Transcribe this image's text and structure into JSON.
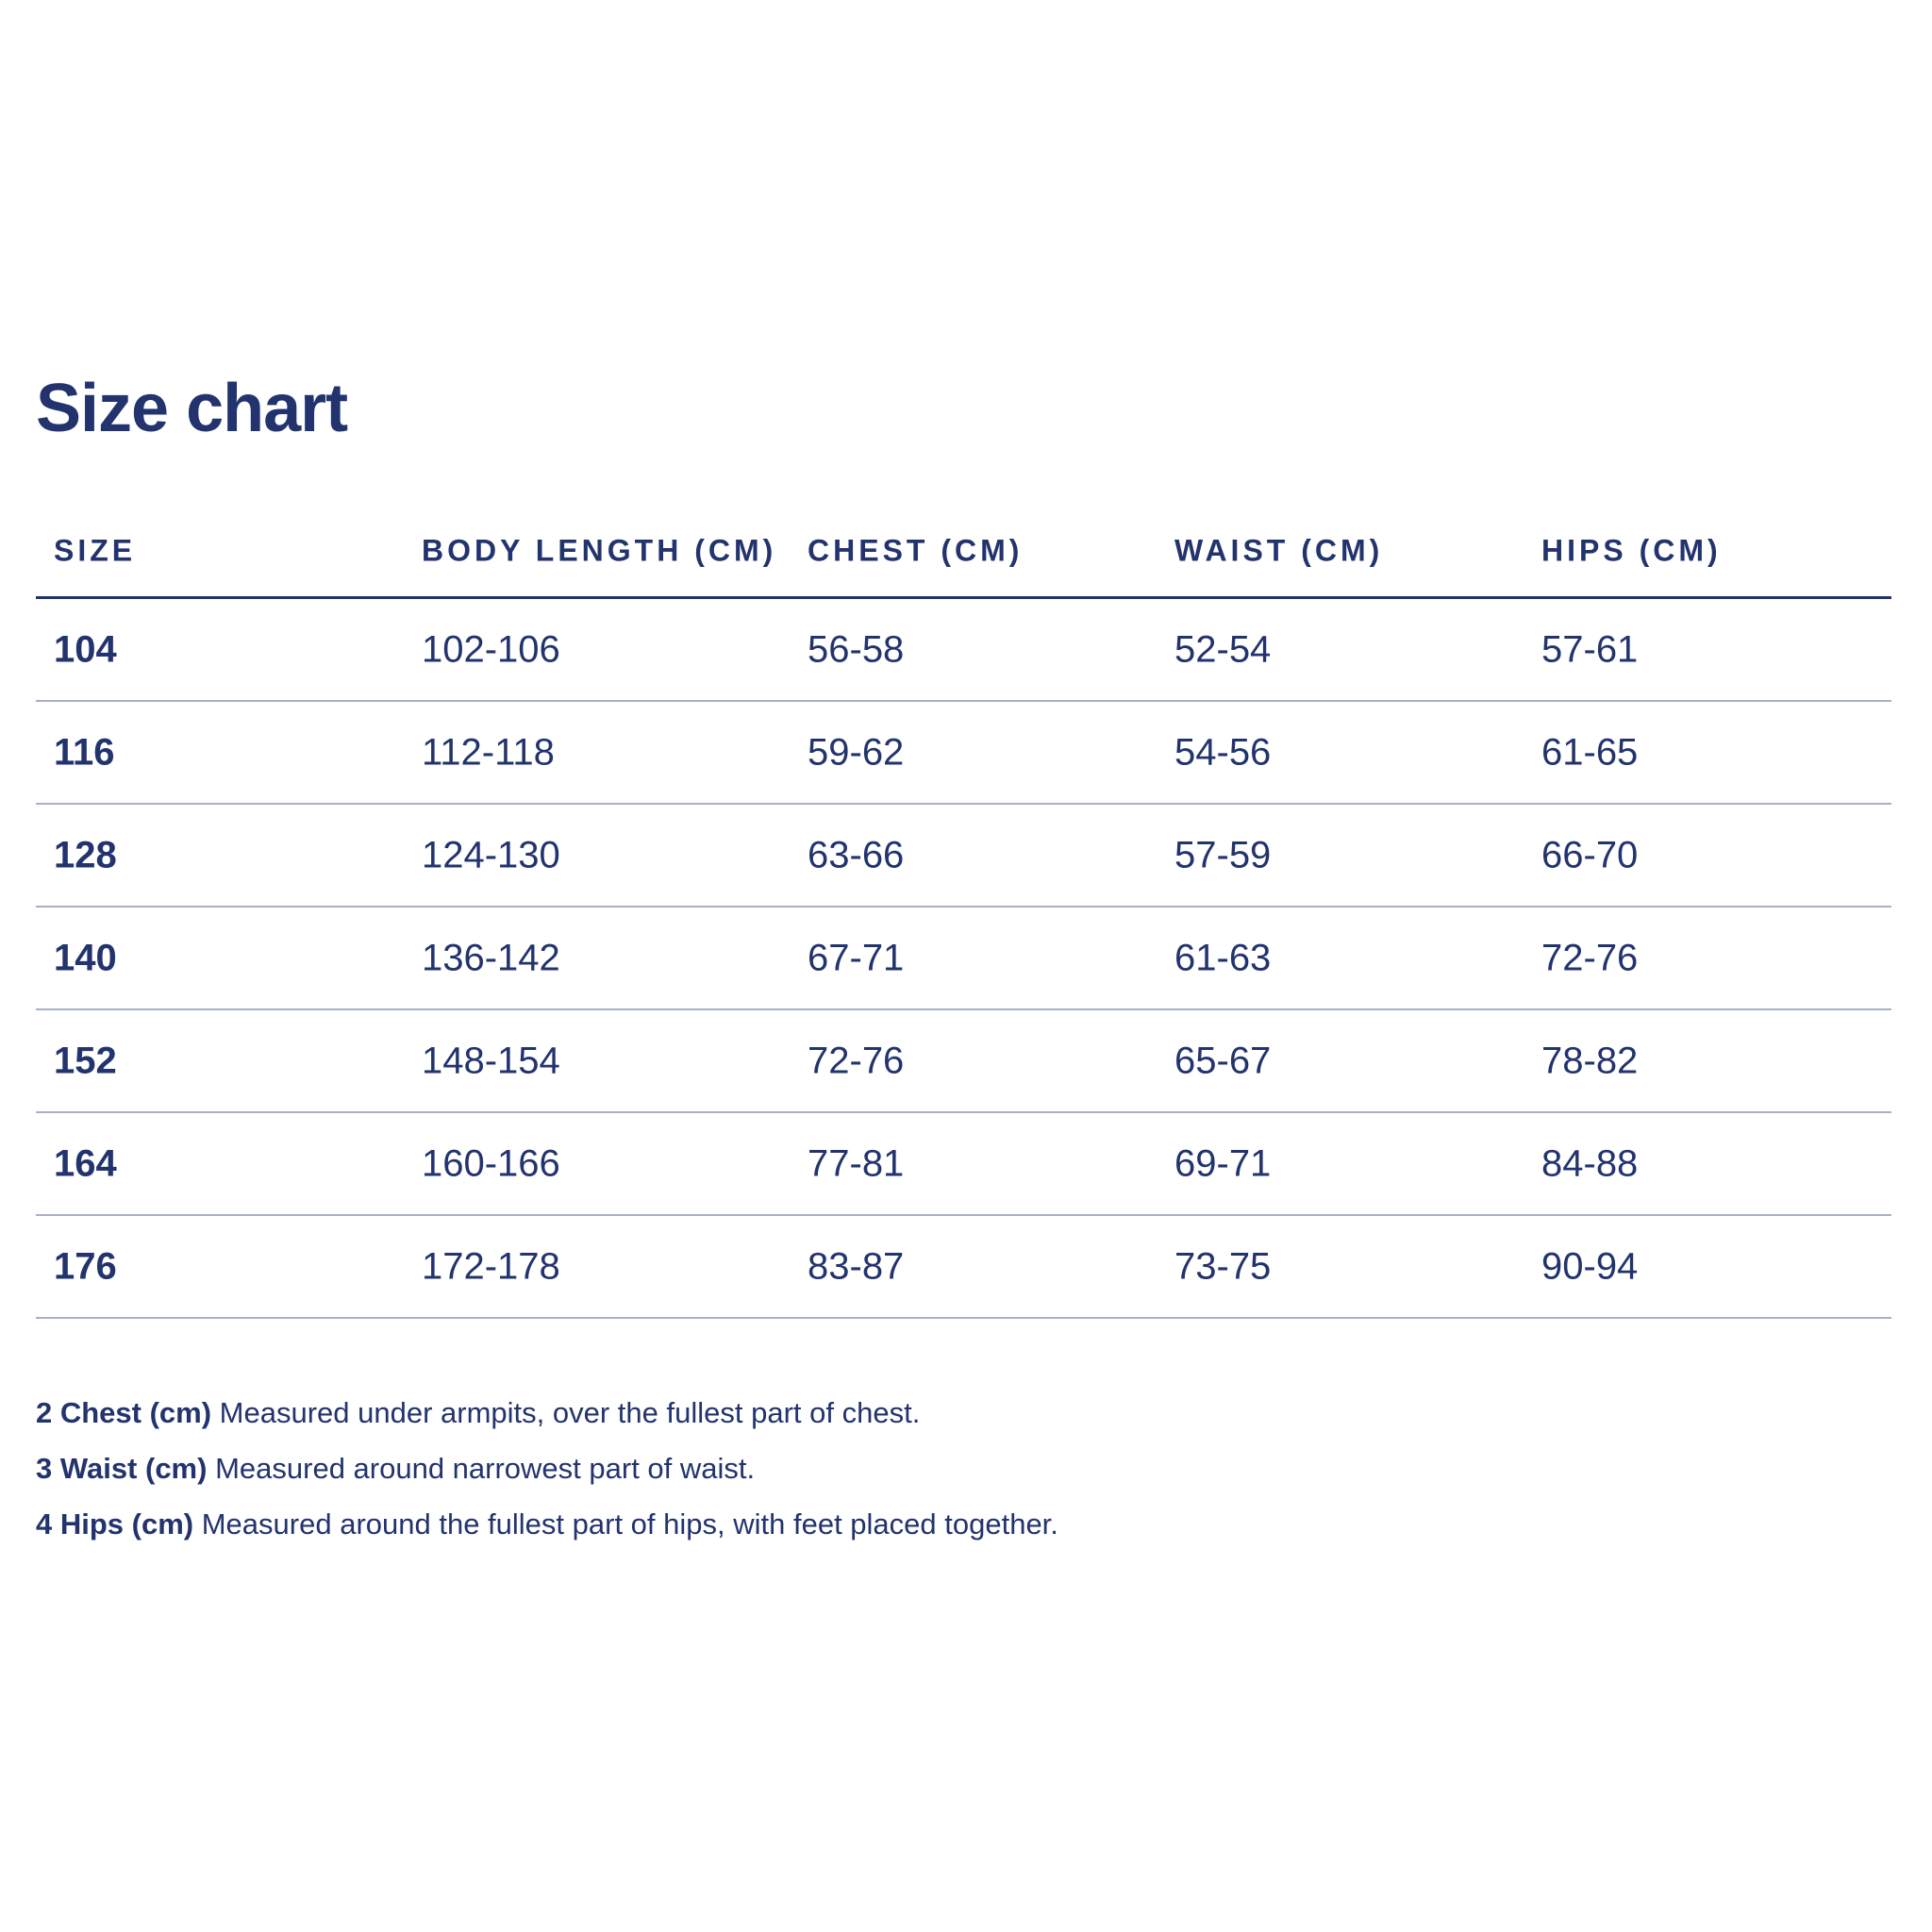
{
  "title": "Size chart",
  "colors": {
    "text": "#22336e",
    "rule": "#a8b0c8"
  },
  "table": {
    "headers": [
      "SIZE",
      "BODY LENGTH (CM)",
      "CHEST (CM)",
      "WAIST (CM)",
      "HIPS (CM)"
    ],
    "rows": [
      [
        "104",
        "102-106",
        "56-58",
        "52-54",
        "57-61"
      ],
      [
        "116",
        "112-118",
        "59-62",
        "54-56",
        "61-65"
      ],
      [
        "128",
        "124-130",
        "63-66",
        "57-59",
        "66-70"
      ],
      [
        "140",
        "136-142",
        "67-71",
        "61-63",
        "72-76"
      ],
      [
        "152",
        "148-154",
        "72-76",
        "65-67",
        "78-82"
      ],
      [
        "164",
        "160-166",
        "77-81",
        "69-71",
        "84-88"
      ],
      [
        "176",
        "172-178",
        "83-87",
        "73-75",
        "90-94"
      ]
    ]
  },
  "notes": [
    {
      "label": "2 Chest (cm)",
      "text": "Measured under armpits, over the fullest part of chest."
    },
    {
      "label": "3 Waist (cm)",
      "text": "Measured around narrowest part of waist."
    },
    {
      "label": "4 Hips (cm)",
      "text": "Measured around the fullest part of hips, with feet placed together."
    }
  ]
}
